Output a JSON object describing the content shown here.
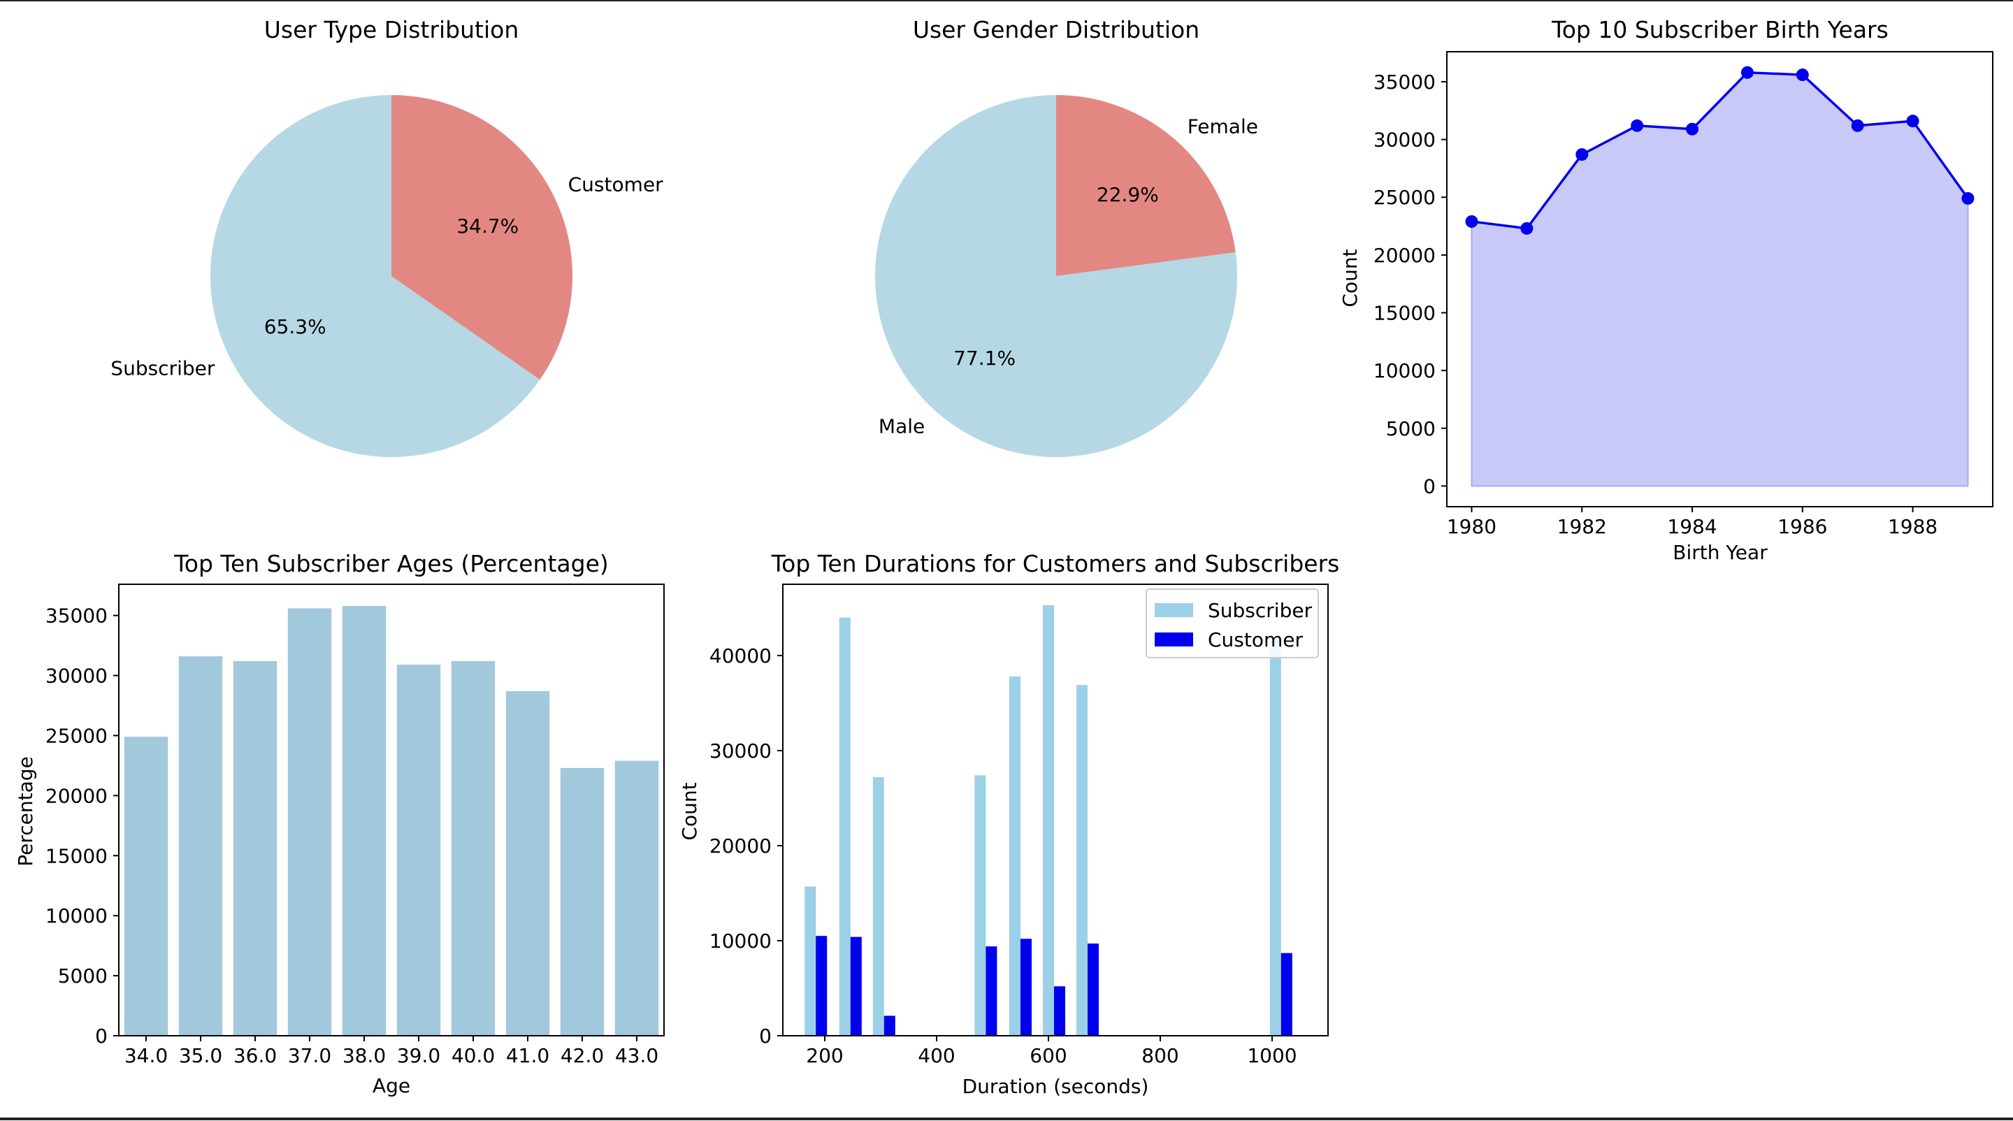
{
  "chart_data": [
    {
      "type": "pie",
      "title": "User Type Distribution",
      "labels": [
        "Subscriber",
        "Customer"
      ],
      "values": [
        65.3,
        34.7
      ],
      "pct_labels": [
        "65.3%",
        "34.7%"
      ],
      "colors": [
        "#b5d8e4",
        "#e38783"
      ]
    },
    {
      "type": "pie",
      "title": "User Gender Distribution",
      "labels": [
        "Male",
        "Female"
      ],
      "values": [
        77.1,
        22.9
      ],
      "pct_labels": [
        "77.1%",
        "22.9%"
      ],
      "colors": [
        "#b5d8e4",
        "#e38783"
      ]
    },
    {
      "type": "area",
      "title": "Top 10 Subscriber Birth Years",
      "xlabel": "Birth Year",
      "ylabel": "Count",
      "x": [
        1980,
        1981,
        1982,
        1983,
        1984,
        1985,
        1986,
        1987,
        1988,
        1989
      ],
      "y": [
        22900,
        22300,
        28700,
        31200,
        30900,
        35800,
        35600,
        31200,
        31600,
        24900
      ],
      "xticks": [
        1980,
        1982,
        1984,
        1986,
        1988
      ],
      "yticks": [
        0,
        5000,
        10000,
        15000,
        20000,
        25000,
        30000,
        35000
      ],
      "xlim": [
        1979.55,
        1989.45
      ],
      "ylim": [
        -1790,
        37600
      ],
      "line_color": "#0000ee",
      "fill_color": "#c9c9f8"
    },
    {
      "type": "bar",
      "title": "Top Ten Subscriber Ages (Percentage)",
      "xlabel": "Age",
      "ylabel": "Percentage",
      "categories": [
        "34.0",
        "35.0",
        "36.0",
        "37.0",
        "38.0",
        "39.0",
        "40.0",
        "41.0",
        "42.0",
        "43.0"
      ],
      "values": [
        24900,
        31600,
        31200,
        35600,
        35800,
        30900,
        31200,
        28700,
        22300,
        22900
      ],
      "yticks": [
        0,
        5000,
        10000,
        15000,
        20000,
        25000,
        30000,
        35000
      ],
      "ylim": [
        0,
        37600
      ],
      "color": "#a2c8dc"
    },
    {
      "type": "bar",
      "title": "Top Ten Durations for Customers and Subscribers",
      "xlabel": "Duration (seconds)",
      "ylabel": "Count",
      "x": [
        184,
        246,
        306,
        488,
        550,
        610,
        670,
        1016
      ],
      "series": [
        {
          "name": "Subscriber",
          "values": [
            15700,
            44000,
            27200,
            27400,
            37800,
            45300,
            36900,
            41600
          ],
          "color": "#9ccfe8"
        },
        {
          "name": "Customer",
          "values": [
            10500,
            10400,
            2100,
            9400,
            10200,
            5200,
            9700,
            8700
          ],
          "color": "#0000ee"
        }
      ],
      "xticks": [
        200,
        400,
        600,
        800,
        1000
      ],
      "yticks": [
        0,
        10000,
        20000,
        30000,
        40000
      ],
      "xlim": [
        125,
        1100
      ],
      "ylim": [
        0,
        47500
      ],
      "legend": "top-right"
    }
  ]
}
